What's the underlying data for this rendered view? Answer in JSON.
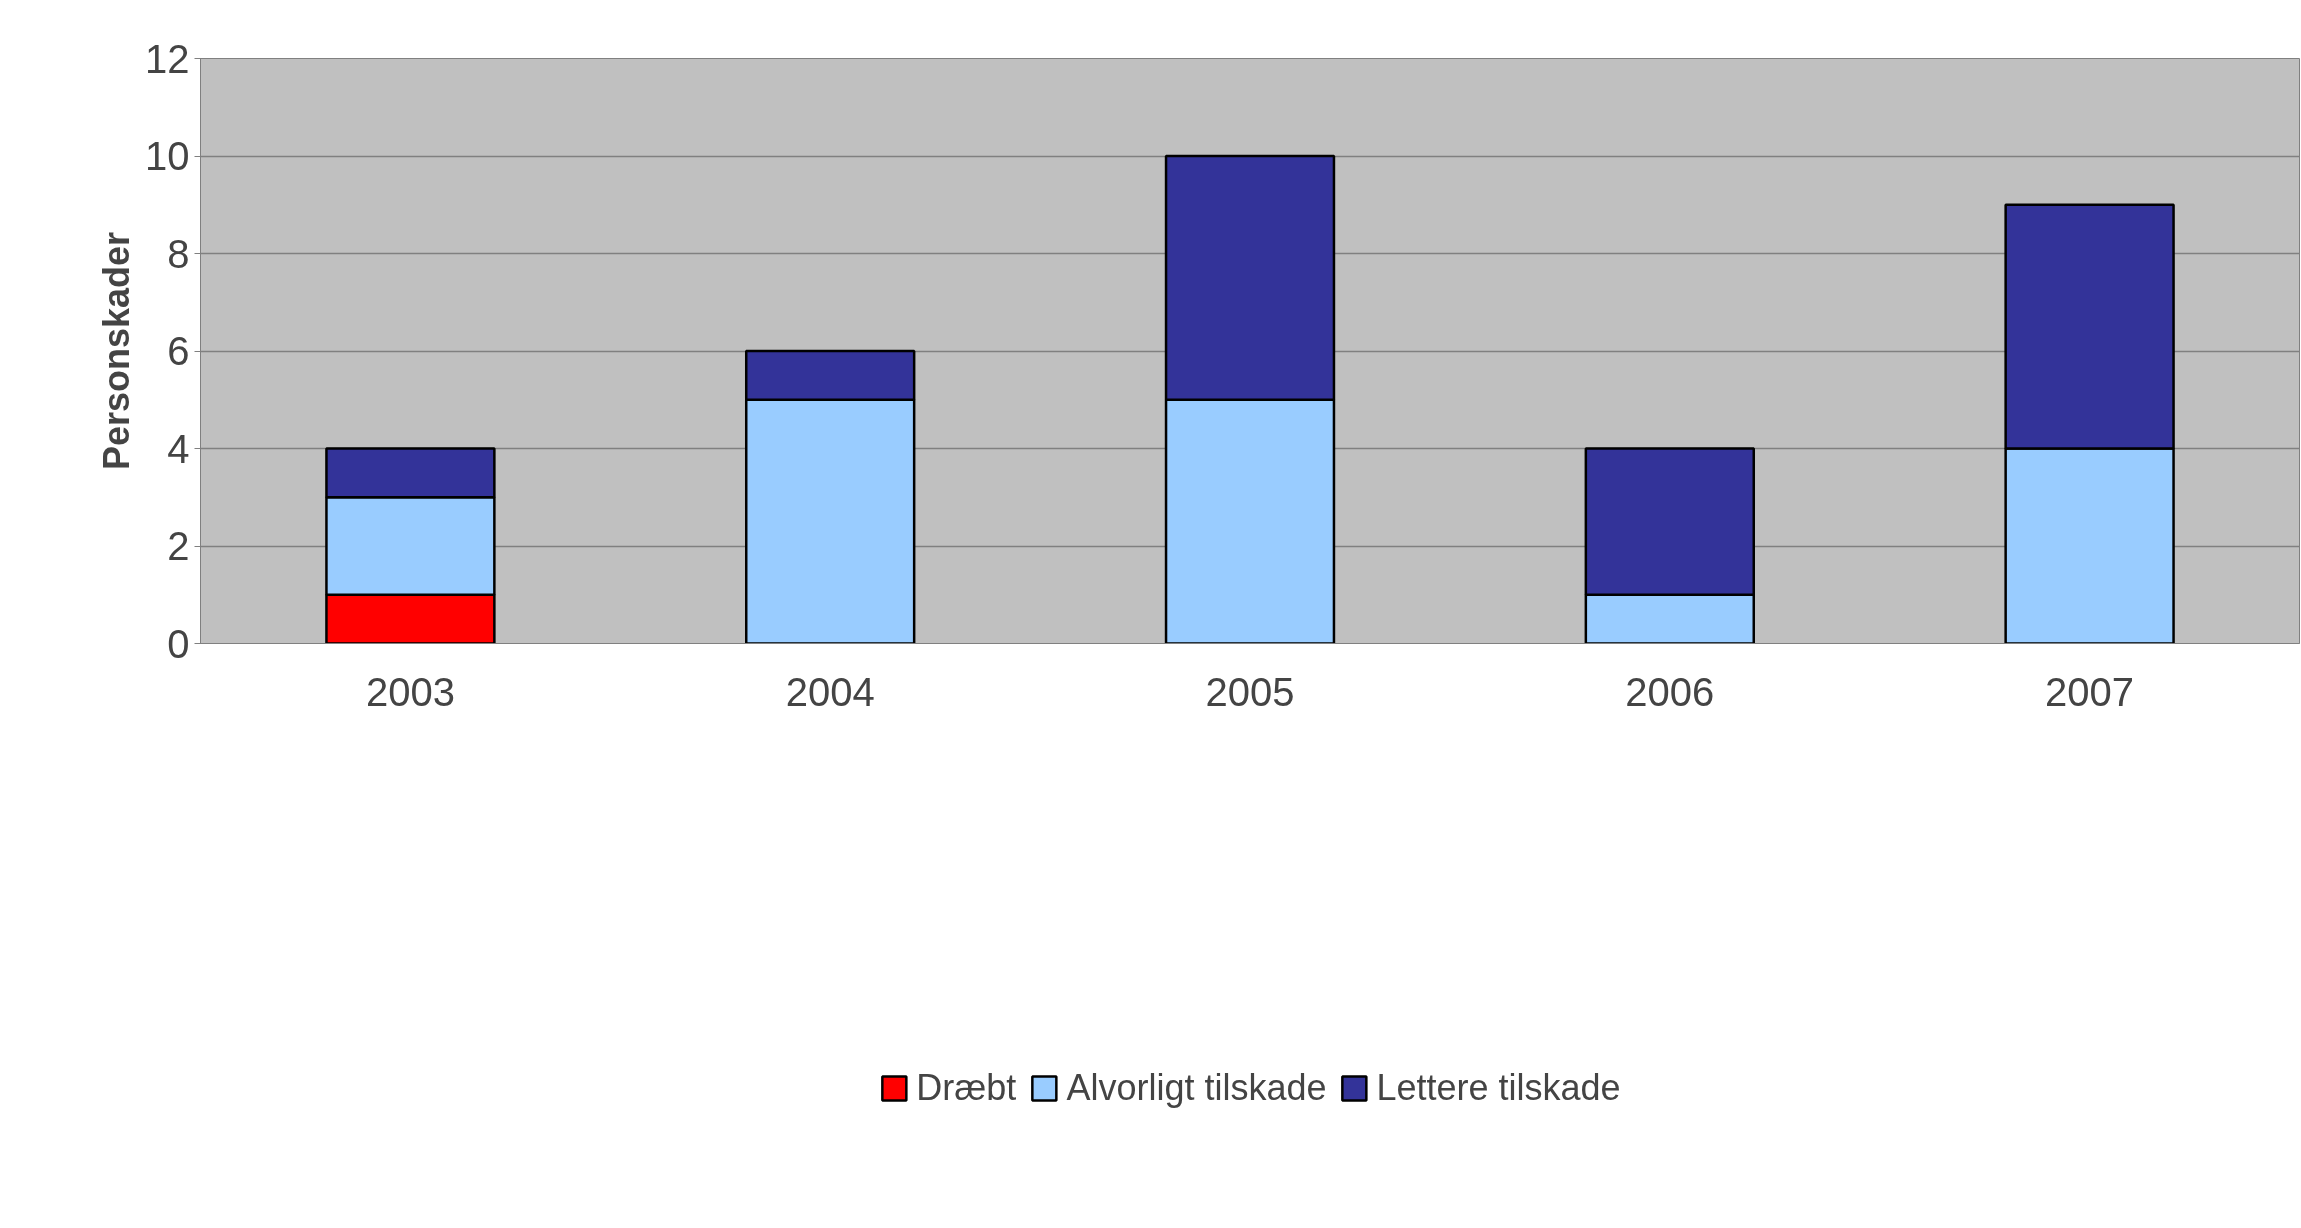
{
  "chart_data": {
    "type": "bar",
    "stacked": true,
    "ylabel": "Personskader",
    "categories": [
      "2003",
      "2004",
      "2005",
      "2006",
      "2007"
    ],
    "series": [
      {
        "name": "Dræbt",
        "color": "#ff0000",
        "values": [
          1,
          0,
          0,
          0,
          0
        ]
      },
      {
        "name": "Alvorligt tilskade",
        "color": "#99ccff",
        "values": [
          2,
          5,
          5,
          1,
          4
        ]
      },
      {
        "name": "Lettere tilskade",
        "color": "#333399",
        "values": [
          1,
          1,
          5,
          3,
          5
        ]
      }
    ],
    "ylim": [
      0,
      12
    ],
    "yticks": [
      0,
      2,
      4,
      6,
      8,
      10,
      12
    ],
    "grid": "y",
    "legend": "bottom"
  }
}
